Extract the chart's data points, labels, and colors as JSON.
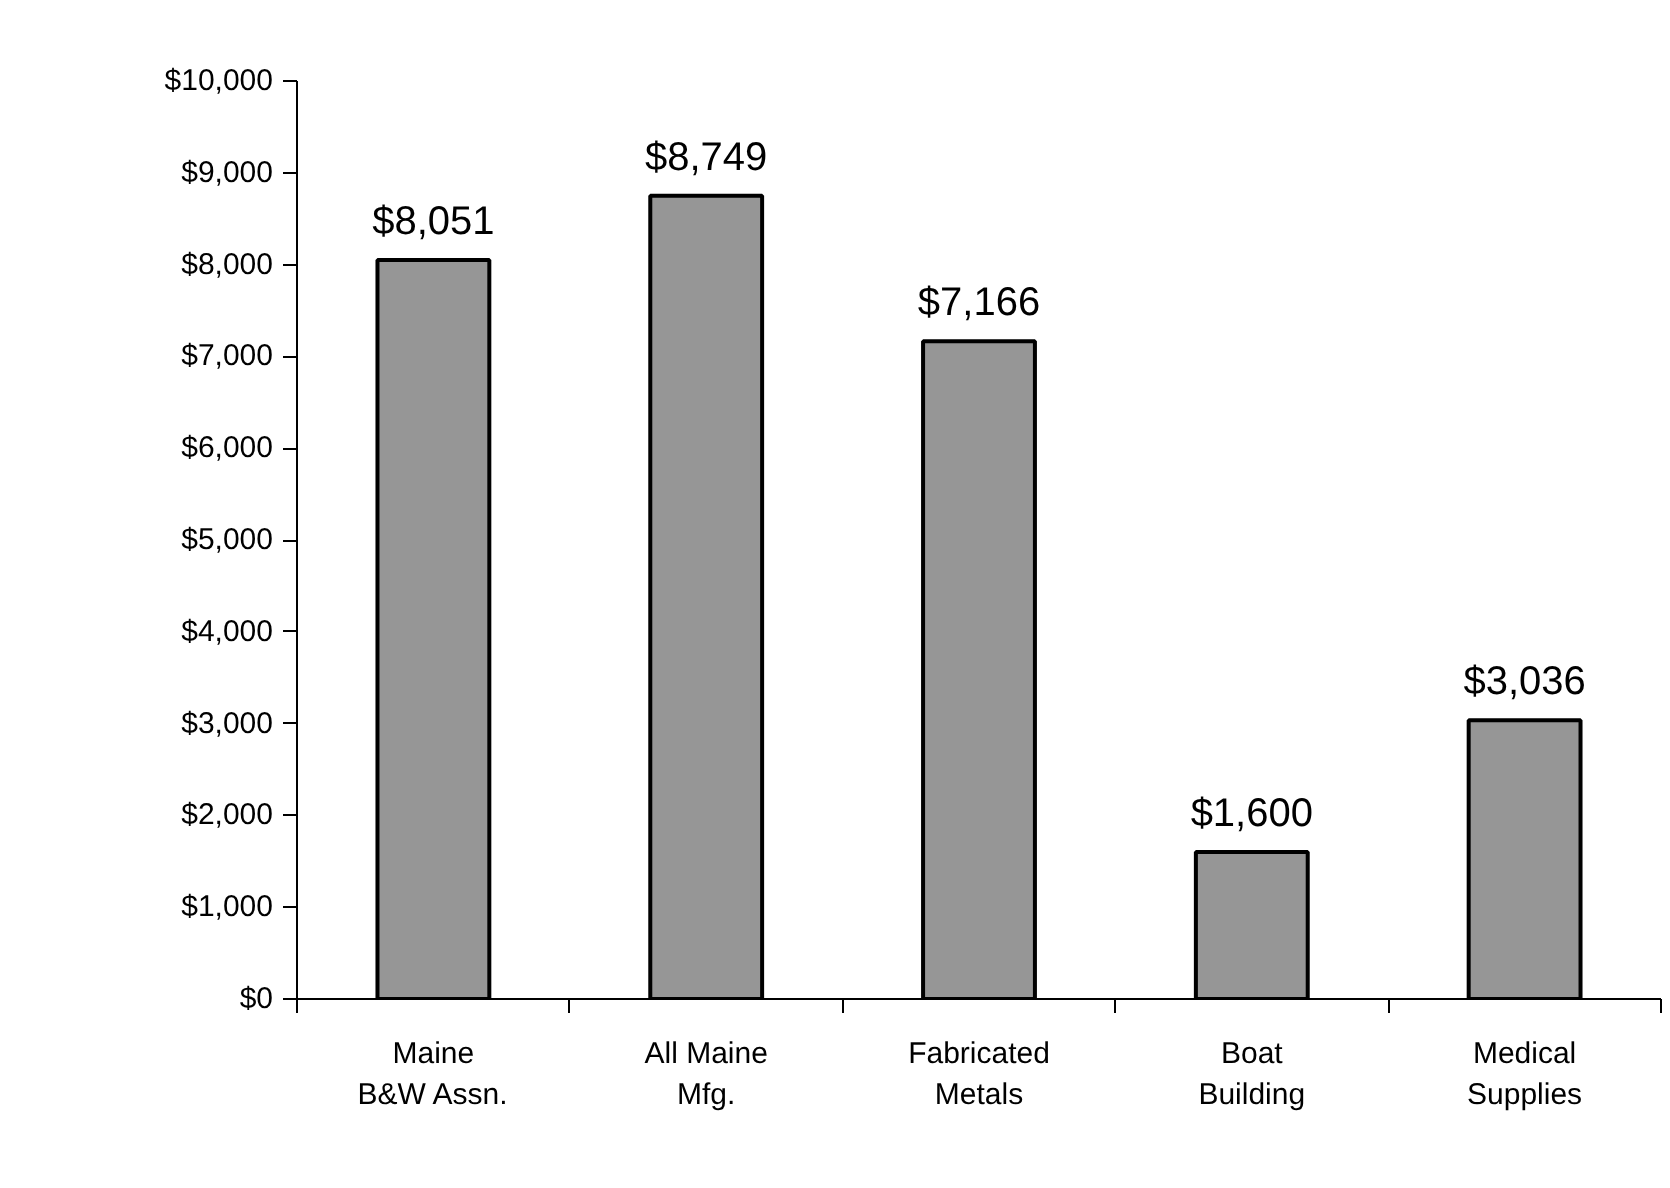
{
  "chart_data": {
    "type": "bar",
    "categories": [
      "Maine\nB&W Assn.",
      "All Maine\nMfg.",
      "Fabricated\nMetals",
      "Boat\nBuilding",
      "Medical\nSupplies"
    ],
    "values": [
      8051,
      8749,
      7166,
      1600,
      3036
    ],
    "value_labels": [
      "$8,051",
      "$8,749",
      "$7,166",
      "$1,600",
      "$3,036"
    ],
    "color": "#969696",
    "ylim": [
      0,
      10000
    ],
    "yticks": [
      {
        "value": 0,
        "label": "$0"
      },
      {
        "value": 1000,
        "label": "$1,000"
      },
      {
        "value": 2000,
        "label": "$2,000"
      },
      {
        "value": 3000,
        "label": "$3,000"
      },
      {
        "value": 4000,
        "label": "$4,000"
      },
      {
        "value": 5000,
        "label": "$5,000"
      },
      {
        "value": 6000,
        "label": "$6,000"
      },
      {
        "value": 7000,
        "label": "$7,000"
      },
      {
        "value": 8000,
        "label": "$8,000"
      },
      {
        "value": 9000,
        "label": "$9,000"
      },
      {
        "value": 10000,
        "label": "$10,000"
      }
    ],
    "grid": false
  }
}
